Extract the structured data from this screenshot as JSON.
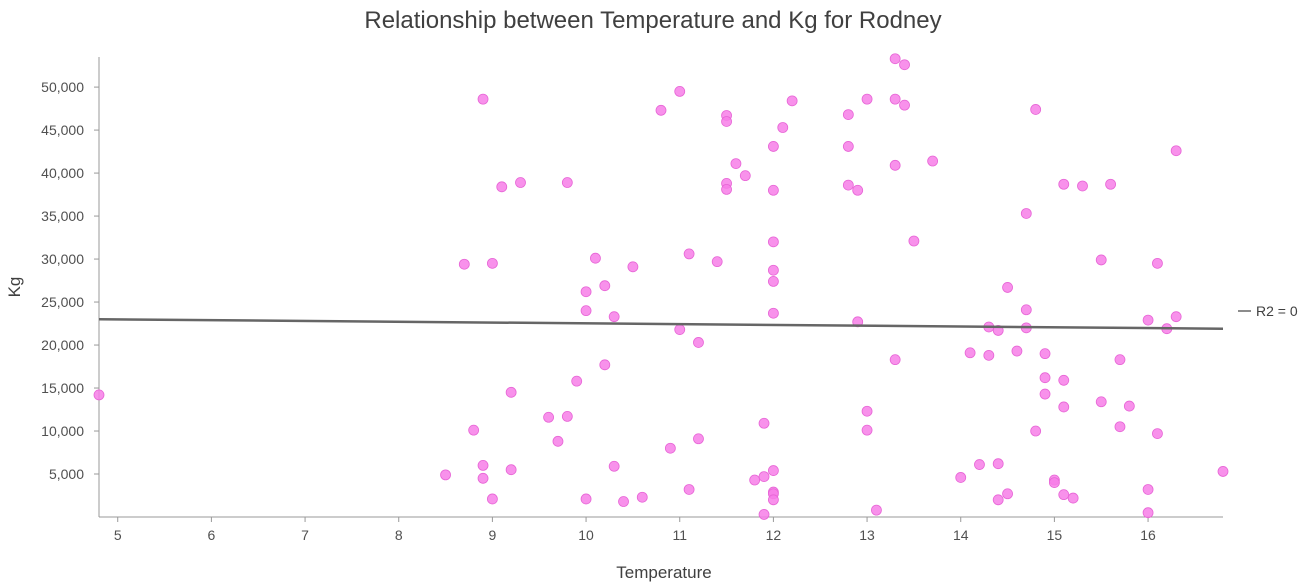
{
  "chart_data": {
    "type": "scatter",
    "title": "Relationship between Temperature and Kg for Rodney",
    "xlabel": "Temperature",
    "ylabel": "Kg",
    "xlim": [
      4.8,
      16.8
    ],
    "ylim": [
      0,
      53500
    ],
    "x_ticks": [
      "5",
      "6",
      "7",
      "8",
      "9",
      "10",
      "11",
      "12",
      "13",
      "14",
      "15",
      "16"
    ],
    "y_ticks": [
      "5,000",
      "10,000",
      "15,000",
      "20,000",
      "25,000",
      "30,000",
      "35,000",
      "40,000",
      "45,000",
      "50,000"
    ],
    "grid": false,
    "point_color": "#f77ee8",
    "trendline": {
      "label": "R2 = 0",
      "start": [
        4.8,
        23000
      ],
      "end": [
        16.8,
        21900
      ],
      "color": "#666666"
    },
    "points": [
      [
        4.8,
        14200
      ],
      [
        8.5,
        4900
      ],
      [
        8.7,
        29400
      ],
      [
        8.8,
        10100
      ],
      [
        8.9,
        48600
      ],
      [
        8.9,
        6000
      ],
      [
        8.9,
        4500
      ],
      [
        9.0,
        29500
      ],
      [
        9.0,
        2100
      ],
      [
        9.1,
        38400
      ],
      [
        9.2,
        14500
      ],
      [
        9.2,
        5500
      ],
      [
        9.3,
        38900
      ],
      [
        9.6,
        11600
      ],
      [
        9.7,
        8800
      ],
      [
        9.8,
        38900
      ],
      [
        9.8,
        11700
      ],
      [
        9.9,
        15800
      ],
      [
        10.0,
        26200
      ],
      [
        10.0,
        24000
      ],
      [
        10.0,
        2100
      ],
      [
        10.1,
        30100
      ],
      [
        10.2,
        26900
      ],
      [
        10.2,
        17700
      ],
      [
        10.3,
        23300
      ],
      [
        10.3,
        5900
      ],
      [
        10.4,
        1800
      ],
      [
        10.5,
        29100
      ],
      [
        10.6,
        2300
      ],
      [
        10.8,
        47300
      ],
      [
        10.9,
        8000
      ],
      [
        11.0,
        49500
      ],
      [
        11.0,
        21800
      ],
      [
        11.1,
        30600
      ],
      [
        11.1,
        3200
      ],
      [
        11.2,
        20300
      ],
      [
        11.2,
        9100
      ],
      [
        11.4,
        29700
      ],
      [
        11.5,
        46700
      ],
      [
        11.5,
        46000
      ],
      [
        11.5,
        38800
      ],
      [
        11.5,
        38100
      ],
      [
        11.6,
        41100
      ],
      [
        11.7,
        39700
      ],
      [
        11.8,
        4300
      ],
      [
        11.9,
        10900
      ],
      [
        11.9,
        4700
      ],
      [
        11.9,
        300
      ],
      [
        12.0,
        43100
      ],
      [
        12.0,
        38000
      ],
      [
        12.0,
        32000
      ],
      [
        12.0,
        28700
      ],
      [
        12.0,
        27400
      ],
      [
        12.0,
        23700
      ],
      [
        12.0,
        5400
      ],
      [
        12.0,
        2900
      ],
      [
        12.0,
        2700
      ],
      [
        12.0,
        2000
      ],
      [
        12.1,
        45300
      ],
      [
        12.2,
        48400
      ],
      [
        12.8,
        46800
      ],
      [
        12.8,
        43100
      ],
      [
        12.8,
        38600
      ],
      [
        12.9,
        38000
      ],
      [
        12.9,
        22700
      ],
      [
        13.0,
        48600
      ],
      [
        13.0,
        12300
      ],
      [
        13.0,
        10100
      ],
      [
        13.1,
        800
      ],
      [
        13.3,
        53300
      ],
      [
        13.3,
        48600
      ],
      [
        13.3,
        40900
      ],
      [
        13.3,
        18300
      ],
      [
        13.4,
        52600
      ],
      [
        13.4,
        47900
      ],
      [
        13.5,
        32100
      ],
      [
        13.7,
        41400
      ],
      [
        14.0,
        4600
      ],
      [
        14.1,
        19100
      ],
      [
        14.2,
        6100
      ],
      [
        14.3,
        22100
      ],
      [
        14.3,
        18800
      ],
      [
        14.4,
        21700
      ],
      [
        14.4,
        6200
      ],
      [
        14.4,
        2000
      ],
      [
        14.5,
        26700
      ],
      [
        14.5,
        2700
      ],
      [
        14.6,
        19300
      ],
      [
        14.7,
        35300
      ],
      [
        14.7,
        24100
      ],
      [
        14.7,
        22000
      ],
      [
        14.8,
        47400
      ],
      [
        14.8,
        10000
      ],
      [
        14.9,
        19000
      ],
      [
        14.9,
        16200
      ],
      [
        14.9,
        14300
      ],
      [
        15.0,
        4300
      ],
      [
        15.0,
        4000
      ],
      [
        15.1,
        38700
      ],
      [
        15.1,
        15900
      ],
      [
        15.1,
        12800
      ],
      [
        15.1,
        2600
      ],
      [
        15.2,
        2200
      ],
      [
        15.3,
        38500
      ],
      [
        15.5,
        29900
      ],
      [
        15.5,
        13400
      ],
      [
        15.6,
        38700
      ],
      [
        15.7,
        18300
      ],
      [
        15.7,
        10500
      ],
      [
        15.8,
        12900
      ],
      [
        16.0,
        22900
      ],
      [
        16.0,
        3200
      ],
      [
        16.0,
        500
      ],
      [
        16.1,
        29500
      ],
      [
        16.1,
        9700
      ],
      [
        16.2,
        21900
      ],
      [
        16.3,
        42600
      ],
      [
        16.3,
        23300
      ],
      [
        16.8,
        5300
      ]
    ]
  }
}
